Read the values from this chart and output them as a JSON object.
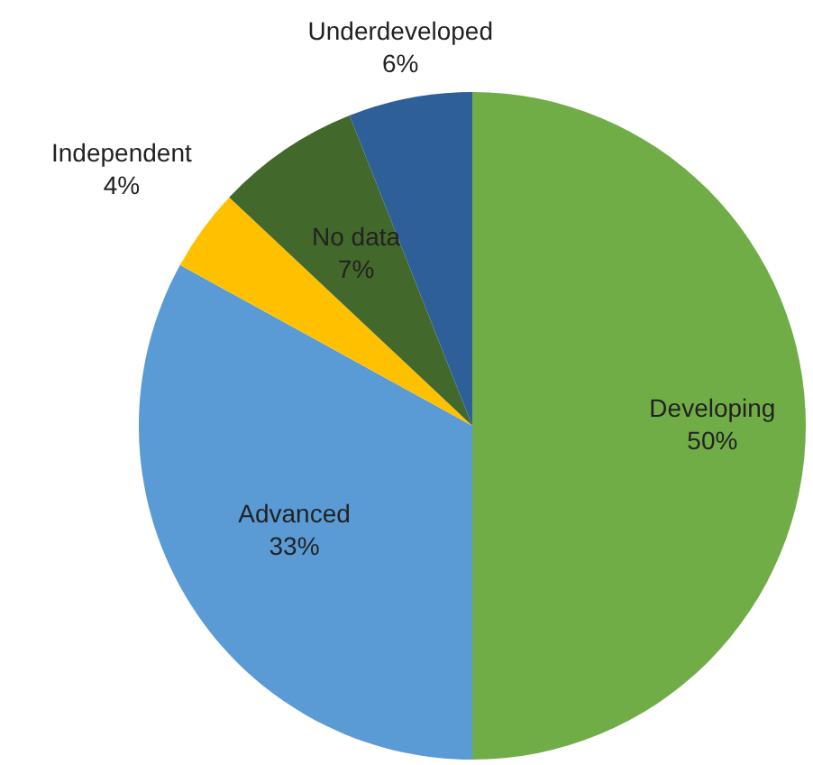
{
  "chart_data": {
    "type": "pie",
    "categories": [
      "Developing",
      "Advanced",
      "Independent",
      "No data",
      "Underdeveloped"
    ],
    "values": [
      50,
      33,
      4,
      7,
      6
    ],
    "value_labels": [
      "50%",
      "33%",
      "4%",
      "7%",
      "6%"
    ],
    "colors": [
      "#70ad47",
      "#5b9bd5",
      "#ffc000",
      "#43682b",
      "#2e5f99"
    ]
  }
}
